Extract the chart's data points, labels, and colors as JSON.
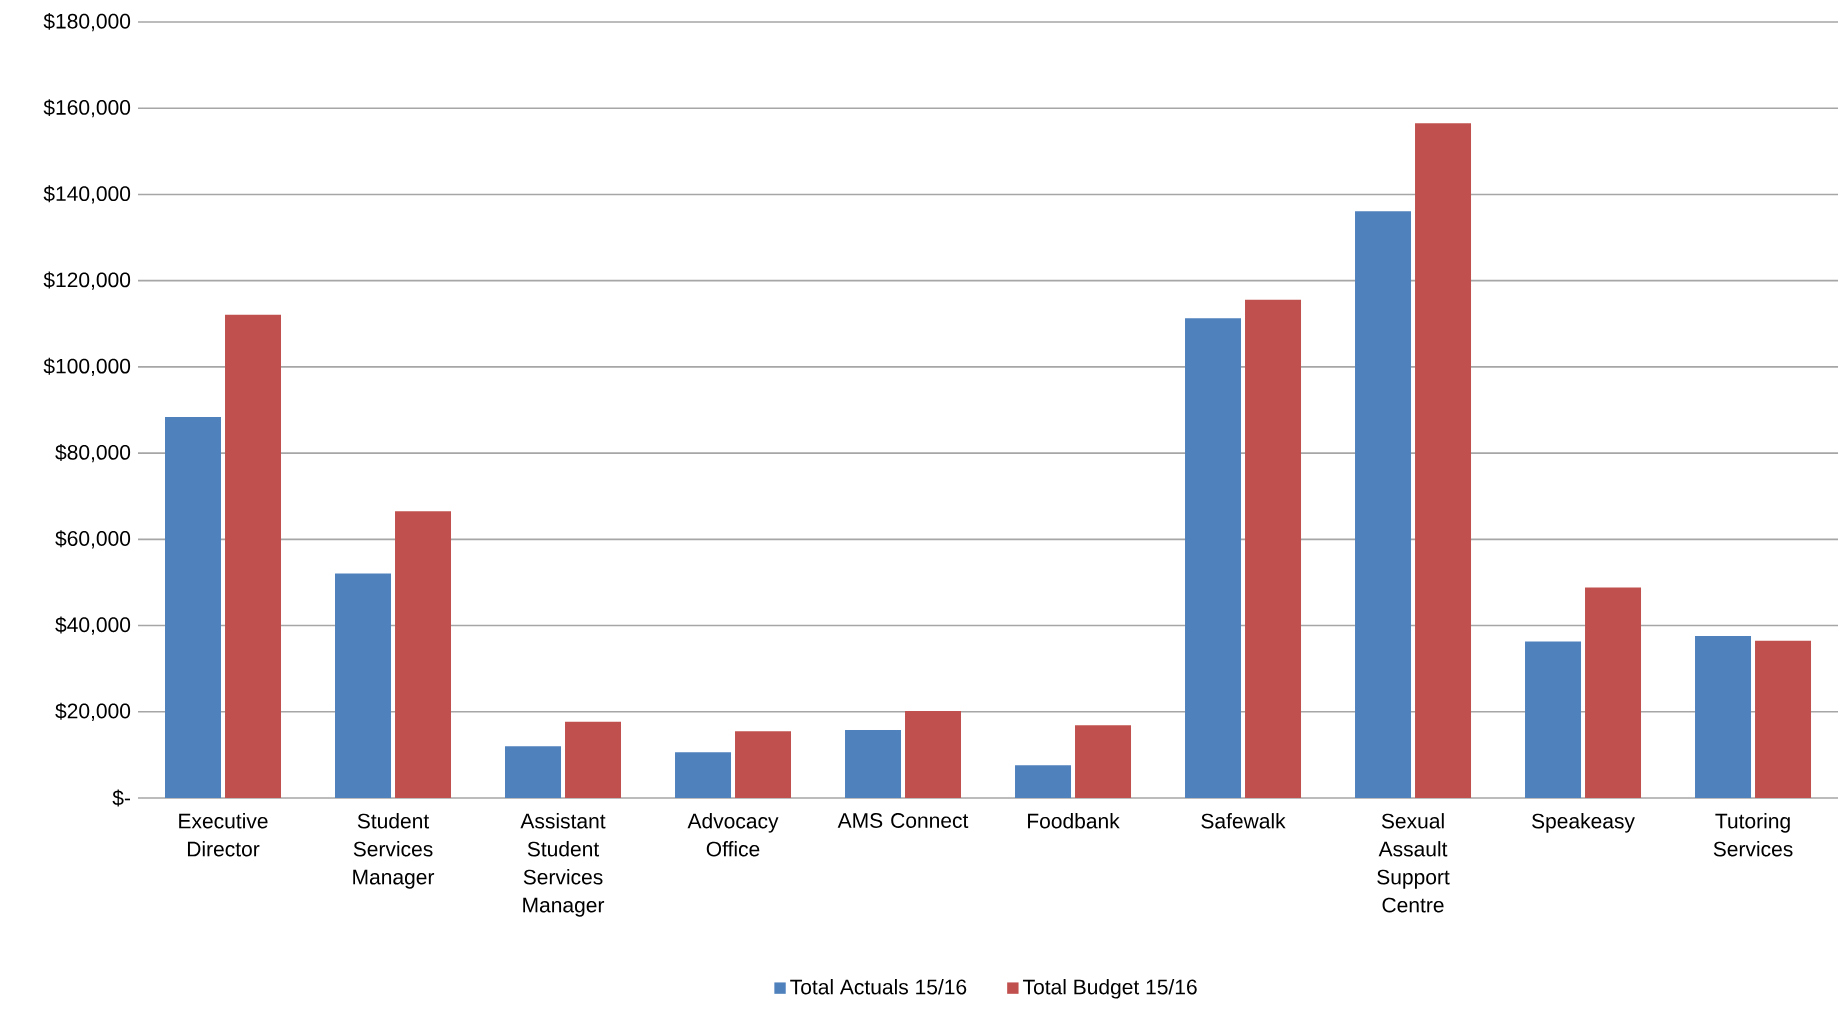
{
  "chart_data": {
    "type": "bar",
    "categories": [
      "Executive Director",
      "Student Services Manager",
      "Assistant Student Services Manager",
      "Advocacy Office",
      "AMS Connect",
      "Foodbank",
      "Safewalk",
      "Sexual Assault Support Centre",
      "Speakeasy",
      "Tutoring Services"
    ],
    "series": [
      {
        "name": "Total Actuals 15/16",
        "color": "#4f81bd",
        "values": [
          88400,
          52100,
          12000,
          10600,
          15800,
          7600,
          111300,
          136100,
          36300,
          37600
        ]
      },
      {
        "name": "Total Budget 15/16",
        "color": "#c0504d",
        "values": [
          112100,
          66500,
          17700,
          15500,
          20200,
          16900,
          115600,
          156500,
          48800,
          36500
        ]
      }
    ],
    "ylim": [
      0,
      180000
    ],
    "yticks": [
      {
        "value": 0,
        "label": "$-"
      },
      {
        "value": 20000,
        "label": "$20,000"
      },
      {
        "value": 40000,
        "label": "$40,000"
      },
      {
        "value": 60000,
        "label": "$60,000"
      },
      {
        "value": 80000,
        "label": "$80,000"
      },
      {
        "value": 100000,
        "label": "$100,000"
      },
      {
        "value": 120000,
        "label": "$120,000"
      },
      {
        "value": 140000,
        "label": "$140,000"
      },
      {
        "value": 160000,
        "label": "$160,000"
      },
      {
        "value": 180000,
        "label": "$180,000"
      }
    ],
    "grid": "y",
    "legend": "bottom"
  }
}
